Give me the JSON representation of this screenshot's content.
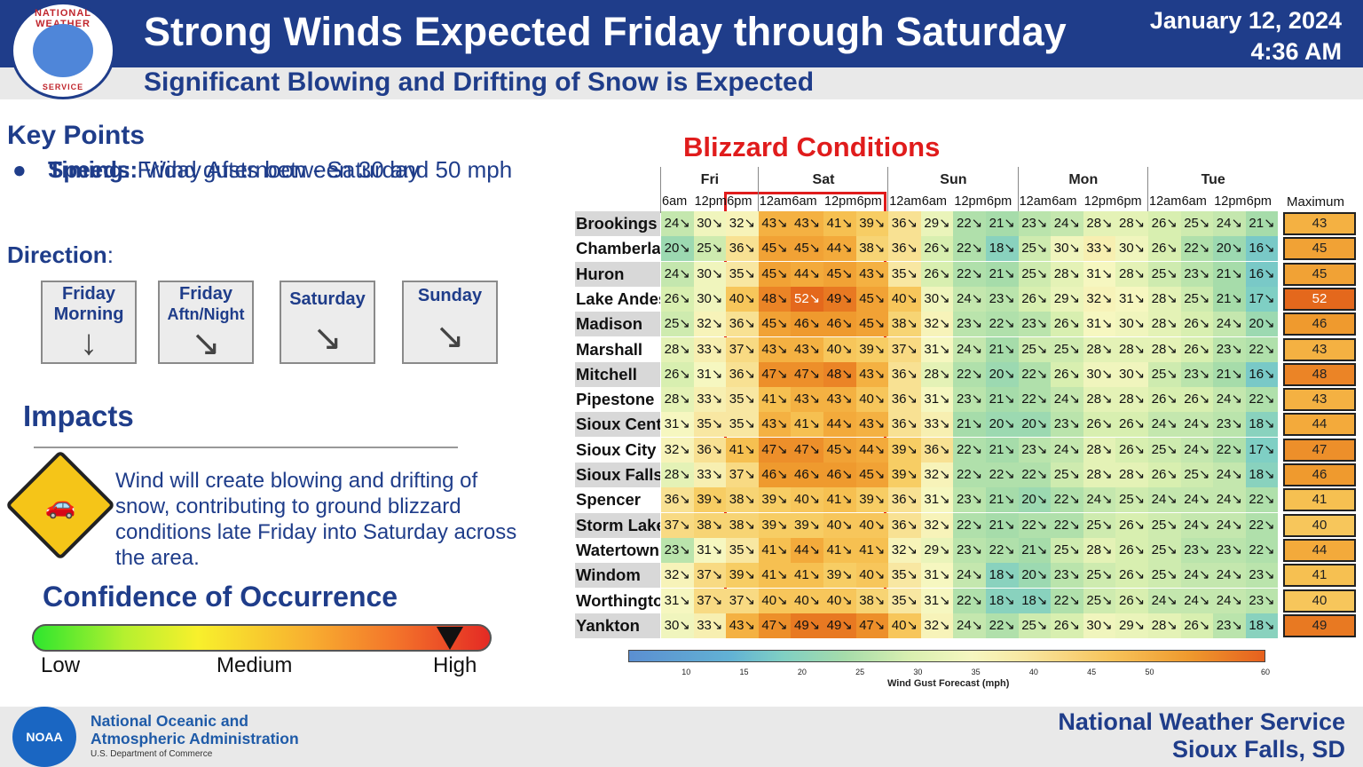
{
  "header": {
    "logo_top_text": "NATIONAL WEATHER",
    "logo_bottom_text": "SERVICE",
    "title": "Strong Winds Expected Friday through Saturday",
    "subtitle": "Significant Blowing and Drifting of Snow is Expected",
    "date": "January 12, 2024",
    "time": "4:36 AM"
  },
  "key_points": {
    "title": "Key Points",
    "timing_label": "Timing:",
    "timing_value": "Friday Afternoon - Saturday",
    "speeds_label": "Speeds:",
    "speeds_value": "Wind gusts between 30 and 50 mph",
    "bullet": "●"
  },
  "direction": {
    "title": "Direction",
    "colon": ":",
    "boxes": [
      {
        "label1": "Friday",
        "label2": "Morning",
        "arrow": "↓"
      },
      {
        "label1": "Friday",
        "label2": "Aftn/Night",
        "arrow": "↘"
      },
      {
        "label1": "Saturday",
        "label2": "",
        "arrow": "↘"
      },
      {
        "label1": "Sunday",
        "label2": "",
        "arrow": "↘"
      }
    ]
  },
  "impacts": {
    "title": "Impacts",
    "text": "Wind will create blowing and drifting of snow, contributing to ground blizzard conditions late Friday into Saturday across the area.",
    "sign_icon": "slippery-road-icon"
  },
  "confidence": {
    "title": "Confidence of Occurrence",
    "low": "Low",
    "medium": "Medium",
    "high": "High",
    "level": "High"
  },
  "chart": {
    "title": "Blizzard Conditions",
    "days": [
      "Fri",
      "Sat",
      "Sun",
      "Mon",
      "Tue"
    ],
    "times": [
      "6am",
      "12pm",
      "6pm",
      "12am",
      "6am",
      "12pm",
      "6pm",
      "12am",
      "6am",
      "12pm",
      "6pm",
      "12am",
      "6am",
      "12pm",
      "6pm",
      "12am",
      "6am",
      "12pm",
      "6pm"
    ],
    "max_label": "Maximum",
    "colorbar_ticks": [
      "10",
      "15",
      "20",
      "25",
      "30",
      "35",
      "40",
      "45",
      "50",
      "60"
    ],
    "colorbar_label": "Wind Gust Forecast (mph)",
    "colors": {
      "highlight_box": "#e01c1c",
      "title": "#e01c1c"
    }
  },
  "chart_data": {
    "type": "heatmap",
    "title": "Blizzard Conditions",
    "xlabel": "",
    "ylabel": "",
    "colorbar_label": "Wind Gust Forecast (mph)",
    "colorbar_range": [
      5,
      60
    ],
    "x": [
      "Fri 6am",
      "Fri 12pm",
      "Fri 6pm",
      "Sat 12am",
      "Sat 6am",
      "Sat 12pm",
      "Sat 6pm",
      "Sun 12am",
      "Sun 6am",
      "Sun 12pm",
      "Sun 6pm",
      "Mon 12am",
      "Mon 6am",
      "Mon 12pm",
      "Mon 6pm",
      "Tue 12am",
      "Tue 6am",
      "Tue 12pm",
      "Tue 6pm"
    ],
    "rows": [
      {
        "location": "Brookings",
        "values": [
          24,
          30,
          32,
          43,
          43,
          41,
          39,
          36,
          29,
          22,
          21,
          23,
          24,
          28,
          28,
          26,
          25,
          24,
          21
        ],
        "max": 43
      },
      {
        "location": "Chamberlain",
        "values": [
          20,
          25,
          36,
          45,
          45,
          44,
          38,
          36,
          26,
          22,
          18,
          25,
          30,
          33,
          30,
          26,
          22,
          20,
          16
        ],
        "max": 45
      },
      {
        "location": "Huron",
        "values": [
          24,
          30,
          35,
          45,
          44,
          45,
          43,
          35,
          26,
          22,
          21,
          25,
          28,
          31,
          28,
          25,
          23,
          21,
          16
        ],
        "max": 45
      },
      {
        "location": "Lake Andes",
        "values": [
          26,
          30,
          40,
          48,
          52,
          49,
          45,
          40,
          30,
          24,
          23,
          26,
          29,
          32,
          31,
          28,
          25,
          21,
          17
        ],
        "max": 52
      },
      {
        "location": "Madison",
        "values": [
          25,
          32,
          36,
          45,
          46,
          46,
          45,
          38,
          32,
          23,
          22,
          23,
          26,
          31,
          30,
          28,
          26,
          24,
          20
        ],
        "max": 46
      },
      {
        "location": "Marshall",
        "values": [
          28,
          33,
          37,
          43,
          43,
          40,
          39,
          37,
          31,
          24,
          21,
          25,
          25,
          28,
          28,
          28,
          26,
          23,
          22
        ],
        "max": 43
      },
      {
        "location": "Mitchell",
        "values": [
          26,
          31,
          36,
          47,
          47,
          48,
          43,
          36,
          28,
          22,
          20,
          22,
          26,
          30,
          30,
          25,
          23,
          21,
          16
        ],
        "max": 48
      },
      {
        "location": "Pipestone",
        "values": [
          28,
          33,
          35,
          41,
          43,
          43,
          40,
          36,
          31,
          23,
          21,
          22,
          24,
          28,
          28,
          26,
          26,
          24,
          22
        ],
        "max": 43
      },
      {
        "location": "Sioux Center",
        "values": [
          31,
          35,
          35,
          43,
          41,
          44,
          43,
          36,
          33,
          21,
          20,
          20,
          23,
          26,
          26,
          24,
          24,
          23,
          18
        ],
        "max": 44
      },
      {
        "location": "Sioux City",
        "values": [
          32,
          36,
          41,
          47,
          47,
          45,
          44,
          39,
          36,
          22,
          21,
          23,
          24,
          28,
          26,
          25,
          24,
          22,
          17
        ],
        "max": 47
      },
      {
        "location": "Sioux Falls",
        "values": [
          28,
          33,
          37,
          46,
          46,
          46,
          45,
          39,
          32,
          22,
          22,
          22,
          25,
          28,
          28,
          26,
          25,
          24,
          18
        ],
        "max": 46
      },
      {
        "location": "Spencer",
        "values": [
          36,
          39,
          38,
          39,
          40,
          41,
          39,
          36,
          31,
          23,
          21,
          20,
          22,
          24,
          25,
          24,
          24,
          24,
          22
        ],
        "max": 41
      },
      {
        "location": "Storm Lake",
        "values": [
          37,
          38,
          38,
          39,
          39,
          40,
          40,
          36,
          32,
          22,
          21,
          22,
          22,
          25,
          26,
          25,
          24,
          24,
          22
        ],
        "max": 40
      },
      {
        "location": "Watertown",
        "values": [
          23,
          31,
          35,
          41,
          44,
          41,
          41,
          32,
          29,
          23,
          22,
          21,
          25,
          28,
          26,
          25,
          23,
          23,
          22
        ],
        "max": 44
      },
      {
        "location": "Windom",
        "values": [
          32,
          37,
          39,
          41,
          41,
          39,
          40,
          35,
          31,
          24,
          18,
          20,
          23,
          25,
          26,
          25,
          24,
          24,
          23
        ],
        "max": 41
      },
      {
        "location": "Worthington",
        "values": [
          31,
          37,
          37,
          40,
          40,
          40,
          38,
          35,
          31,
          22,
          18,
          18,
          22,
          25,
          26,
          24,
          24,
          24,
          23
        ],
        "max": 40
      },
      {
        "location": "Yankton",
        "values": [
          30,
          33,
          43,
          47,
          49,
          49,
          47,
          40,
          32,
          24,
          22,
          25,
          26,
          30,
          29,
          28,
          26,
          23,
          18
        ],
        "max": 49
      }
    ]
  },
  "footer": {
    "noaa_logo_text": "NOAA",
    "noaa_line1": "National Oceanic and",
    "noaa_line2": "Atmospheric Administration",
    "noaa_dept": "U.S. Department of Commerce",
    "nws_line1": "National Weather Service",
    "nws_line2": "Sioux Falls, SD"
  }
}
